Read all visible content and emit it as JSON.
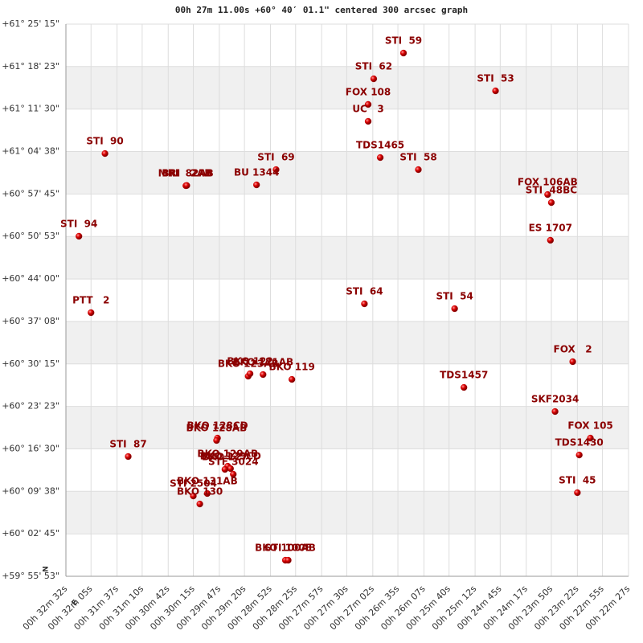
{
  "chart_data": {
    "type": "scatter",
    "title": "00h 27m 11.00s +60° 40′ 01.1\" centered 300 arcsec graph",
    "compass": {
      "north": "N",
      "east": "E"
    },
    "grid": true,
    "band_color": "#f0f0f0",
    "grid_color": "#dddddd",
    "xlim": [
      1952,
      1347
    ],
    "ylim": [
      -247,
      5115
    ],
    "xticks": [
      {
        "value": 1952,
        "label": "00h 32m 32s"
      },
      {
        "value": 1925,
        "label": "00h 32m 05s"
      },
      {
        "value": 1897,
        "label": "00h 31m 37s"
      },
      {
        "value": 1870,
        "label": "00h 31m 10s"
      },
      {
        "value": 1842,
        "label": "00h 30m 42s"
      },
      {
        "value": 1815,
        "label": "00h 30m 15s"
      },
      {
        "value": 1787,
        "label": "00h 29m 47s"
      },
      {
        "value": 1760,
        "label": "00h 29m 20s"
      },
      {
        "value": 1732,
        "label": "00h 28m 52s"
      },
      {
        "value": 1705,
        "label": "00h 28m 25s"
      },
      {
        "value": 1677,
        "label": "00h 27m 57s"
      },
      {
        "value": 1650,
        "label": "00h 27m 30s"
      },
      {
        "value": 1622,
        "label": "00h 27m 02s"
      },
      {
        "value": 1595,
        "label": "00h 26m 35s"
      },
      {
        "value": 1567,
        "label": "00h 26m 07s"
      },
      {
        "value": 1540,
        "label": "00h 25m 40s"
      },
      {
        "value": 1512,
        "label": "00h 25m 12s"
      },
      {
        "value": 1485,
        "label": "00h 24m 45s"
      },
      {
        "value": 1457,
        "label": "00h 24m 17s"
      },
      {
        "value": 1430,
        "label": "00h 23m 50s"
      },
      {
        "value": 1402,
        "label": "00h 23m 22s"
      },
      {
        "value": 1375,
        "label": "00h 22m 55s"
      },
      {
        "value": 1347,
        "label": "00h 22m 27s"
      }
    ],
    "yticks": [
      {
        "value": 5115,
        "label": "+61° 25' 15\""
      },
      {
        "value": 4703,
        "label": "+61° 18' 23\""
      },
      {
        "value": 4290,
        "label": "+61° 11' 30\""
      },
      {
        "value": 3878,
        "label": "+61° 04' 38\""
      },
      {
        "value": 3465,
        "label": "+60° 57' 45\""
      },
      {
        "value": 3053,
        "label": "+60° 50' 53\""
      },
      {
        "value": 2640,
        "label": "+60° 44' 00\""
      },
      {
        "value": 2228,
        "label": "+60° 37' 08\""
      },
      {
        "value": 1815,
        "label": "+60° 30' 15\""
      },
      {
        "value": 1403,
        "label": "+60° 23' 23\""
      },
      {
        "value": 990,
        "label": "+60° 16' 30\""
      },
      {
        "value": 578,
        "label": "+60° 09' 38\""
      },
      {
        "value": 165,
        "label": "+60° 02' 45\""
      },
      {
        "value": -247,
        "label": "+59° 55' 53\""
      }
    ],
    "series": [
      {
        "color": "#cc0000",
        "labels": [
          "STI  59",
          "STI  62",
          "STI  53",
          "FOX 108",
          "UC   3",
          "STI  90",
          "TDS1465",
          "STI  58",
          "STI  69",
          "MRI  82AB",
          "BRI   2AB",
          "BU 1344",
          "FOX 106AB",
          "STI  48BC",
          "STI  94",
          "ES 1707",
          "STI  64",
          "STI  54",
          "PTT   2",
          "FOX   2",
          "BKO 123AB",
          "BKO 122",
          "BKO 121AB",
          "BKO 119",
          "TDS1457",
          "SKF2034",
          "FOX 105",
          "BKO 128CD",
          "BKO 128AB",
          "TDS1430",
          "STI  87",
          "BKO 129AB",
          "BKO 129CD",
          "BKO 127",
          "STF 3024",
          "STI  45",
          "BKO 131AB",
          "STI 2504",
          "BKO 130",
          "BKO 100AB",
          "STI 100E"
        ],
        "x": [
          1589,
          1621,
          1490,
          1627,
          1627,
          1910,
          1614,
          1573,
          1726,
          1823,
          1822,
          1747,
          1434,
          1430,
          1938,
          1431,
          1631,
          1534,
          1925,
          1407,
          1756,
          1754,
          1740,
          1709,
          1524,
          1426,
          1388,
          1789,
          1790,
          1400,
          1885,
          1778,
          1775,
          1781,
          1772,
          1402,
          1800,
          1815,
          1808,
          1716,
          1713
        ],
        "values": [
          4834,
          4584,
          4467,
          4335,
          4171,
          3858,
          3819,
          3702,
          3702,
          3546,
          3548,
          3554,
          3460,
          3382,
          3055,
          3016,
          2399,
          2352,
          2313,
          1837,
          1696,
          1720,
          1712,
          1665,
          1587,
          1353,
          1095,
          1095,
          1072,
          931,
          916,
          822,
          799,
          791,
          744,
          565,
          557,
          533,
          455,
          -91,
          -91
        ]
      }
    ]
  }
}
